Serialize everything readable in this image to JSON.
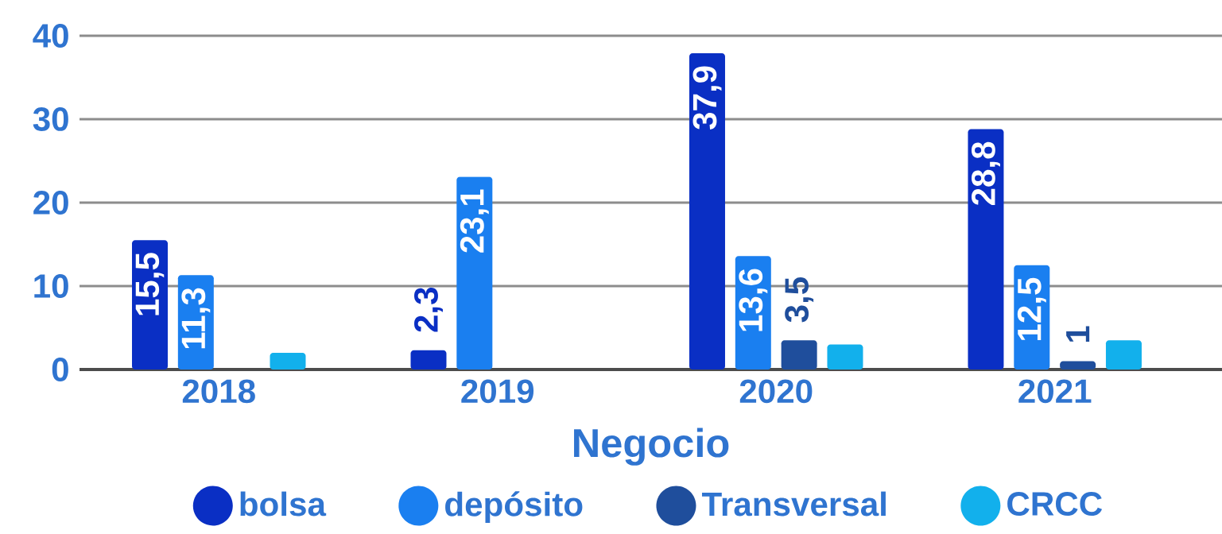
{
  "chart_data": {
    "type": "bar",
    "xlabel": "Negocio",
    "categories": [
      "2018",
      "2019",
      "2020",
      "2021"
    ],
    "series": [
      {
        "name": "bolsa",
        "color": "#0a2fc4",
        "values": [
          15.5,
          2.3,
          37.9,
          28.8
        ],
        "value_labels": [
          "15,5",
          "2,3",
          "37,9",
          "28,8"
        ]
      },
      {
        "name": "depósito",
        "color": "#1a7ff0",
        "values": [
          11.3,
          23.1,
          13.6,
          12.5
        ],
        "value_labels": [
          "11,3",
          "23,1",
          "13,6",
          "12,5"
        ]
      },
      {
        "name": "Transversal",
        "color": "#1f4e9c",
        "values": [
          null,
          null,
          3.5,
          1
        ],
        "value_labels": [
          null,
          null,
          "3,5",
          "1"
        ]
      },
      {
        "name": "CRCC",
        "color": "#12b0ec",
        "values": [
          2,
          null,
          3,
          3.5
        ],
        "value_labels": [
          null,
          null,
          null,
          null
        ]
      }
    ],
    "ylim": [
      0,
      40
    ],
    "yticks": [
      0,
      10,
      20,
      30,
      40
    ],
    "grid": "y",
    "legend": "bottom"
  }
}
